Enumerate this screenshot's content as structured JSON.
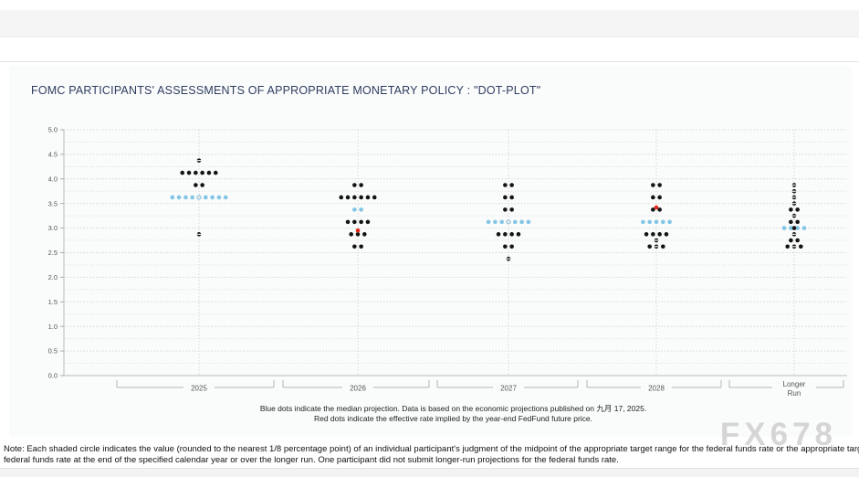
{
  "header": {
    "title": "FOMC PARTICIPANTS' ASSESSMENTS OF APPROPRIATE MONETARY POLICY : \"DOT-PLOT\""
  },
  "chart_data": {
    "type": "scatter",
    "title": "FOMC PARTICIPANTS' ASSESSMENTS OF APPROPRIATE MONETARY POLICY : \"DOT-PLOT\"",
    "ylabel": "",
    "xlabel": "",
    "ylim": [
      0.0,
      5.0
    ],
    "ytick_labels": [
      "5.0",
      "4.5",
      "4.0",
      "3.5",
      "3.0",
      "2.5",
      "2.0",
      "1.5",
      "1.0",
      "0.5",
      "0.0"
    ],
    "grid": "dashed horizontal lines every 0.25; dashed vertical line at each column center",
    "colors": {
      "dot": "#141414",
      "median": "#82c5e5",
      "red": "#e22718",
      "axis": "#b9b9b9",
      "grid_major": "#d5d5d5",
      "grid_minor": "#e4e4e4",
      "label": "#555555"
    },
    "columns": [
      {
        "label": "2025",
        "label_lines": [
          "2025"
        ],
        "dots": [
          {
            "value": 4.375,
            "count": 1,
            "color": "black",
            "open": "all"
          },
          {
            "value": 4.125,
            "count": 6,
            "color": "black"
          },
          {
            "value": 3.875,
            "count": 2,
            "color": "black"
          },
          {
            "value": 3.625,
            "count": 9,
            "color": "blue",
            "open": "center"
          },
          {
            "value": 2.875,
            "count": 1,
            "color": "black",
            "open": "all"
          }
        ]
      },
      {
        "label": "2026",
        "label_lines": [
          "2026"
        ],
        "red_dot_value": 2.95,
        "dots": [
          {
            "value": 3.875,
            "count": 2,
            "color": "black"
          },
          {
            "value": 3.625,
            "count": 6,
            "color": "black"
          },
          {
            "value": 3.375,
            "count": 2,
            "color": "blue"
          },
          {
            "value": 3.125,
            "count": 4,
            "color": "black"
          },
          {
            "value": 2.875,
            "count": 3,
            "color": "black"
          },
          {
            "value": 2.625,
            "count": 2,
            "color": "black"
          }
        ]
      },
      {
        "label": "2027",
        "label_lines": [
          "2027"
        ],
        "dots": [
          {
            "value": 3.875,
            "count": 2,
            "color": "black"
          },
          {
            "value": 3.625,
            "count": 2,
            "color": "black"
          },
          {
            "value": 3.375,
            "count": 2,
            "color": "black"
          },
          {
            "value": 3.125,
            "count": 7,
            "color": "blue",
            "open": "center"
          },
          {
            "value": 2.875,
            "count": 4,
            "color": "black"
          },
          {
            "value": 2.625,
            "count": 2,
            "color": "black"
          },
          {
            "value": 2.375,
            "count": 1,
            "color": "black",
            "open": "all"
          }
        ]
      },
      {
        "label": "2028",
        "label_lines": [
          "2028"
        ],
        "red_dot_value": 3.42,
        "dots": [
          {
            "value": 3.875,
            "count": 2,
            "color": "black"
          },
          {
            "value": 3.625,
            "count": 2,
            "color": "black"
          },
          {
            "value": 3.375,
            "count": 2,
            "color": "black"
          },
          {
            "value": 3.125,
            "count": 5,
            "color": "blue"
          },
          {
            "value": 2.875,
            "count": 4,
            "color": "black"
          },
          {
            "value": 2.75,
            "count": 1,
            "color": "black",
            "open": "all"
          },
          {
            "value": 2.625,
            "count": 3,
            "color": "black",
            "open": "center"
          }
        ]
      },
      {
        "label": "Longer Run",
        "label_lines": [
          "Longer",
          "Run"
        ],
        "dots": [
          {
            "value": 3.875,
            "count": 1,
            "color": "black",
            "open": "all"
          },
          {
            "value": 3.75,
            "count": 1,
            "color": "black",
            "open": "all"
          },
          {
            "value": 3.625,
            "count": 1,
            "color": "black",
            "open": "all"
          },
          {
            "value": 3.5,
            "count": 1,
            "color": "black",
            "open": "all"
          },
          {
            "value": 3.375,
            "count": 2,
            "color": "black"
          },
          {
            "value": 3.25,
            "count": 1,
            "color": "black",
            "open": "all"
          },
          {
            "value": 3.125,
            "count": 2,
            "color": "black"
          },
          {
            "value": 3.0,
            "count": 4,
            "color": "blue"
          },
          {
            "value": 3.0,
            "count": 1,
            "color": "black"
          },
          {
            "value": 2.875,
            "count": 1,
            "color": "black",
            "open": "all"
          },
          {
            "value": 2.75,
            "count": 2,
            "color": "black"
          },
          {
            "value": 2.625,
            "count": 3,
            "color": "black",
            "open": "center"
          }
        ]
      }
    ],
    "footnote_line1": "Blue dots indicate the median projection. Data is based on the economic projections published on 九月 17, 2025.",
    "footnote_line2": "Red dots indicate the effective rate implied by the year-end FedFund future price."
  },
  "note": {
    "line1": "Note: Each shaded circle indicates the value (rounded to the nearest 1/8 percentage point) of an individual participant's judgment of the midpoint of the appropriate target range for the federal funds rate or the appropriate target level for the",
    "line2": "federal funds rate at the end of the specified calendar year or over the longer run. One participant did not submit longer-run projections for the federal funds rate."
  },
  "watermark": "FX678"
}
